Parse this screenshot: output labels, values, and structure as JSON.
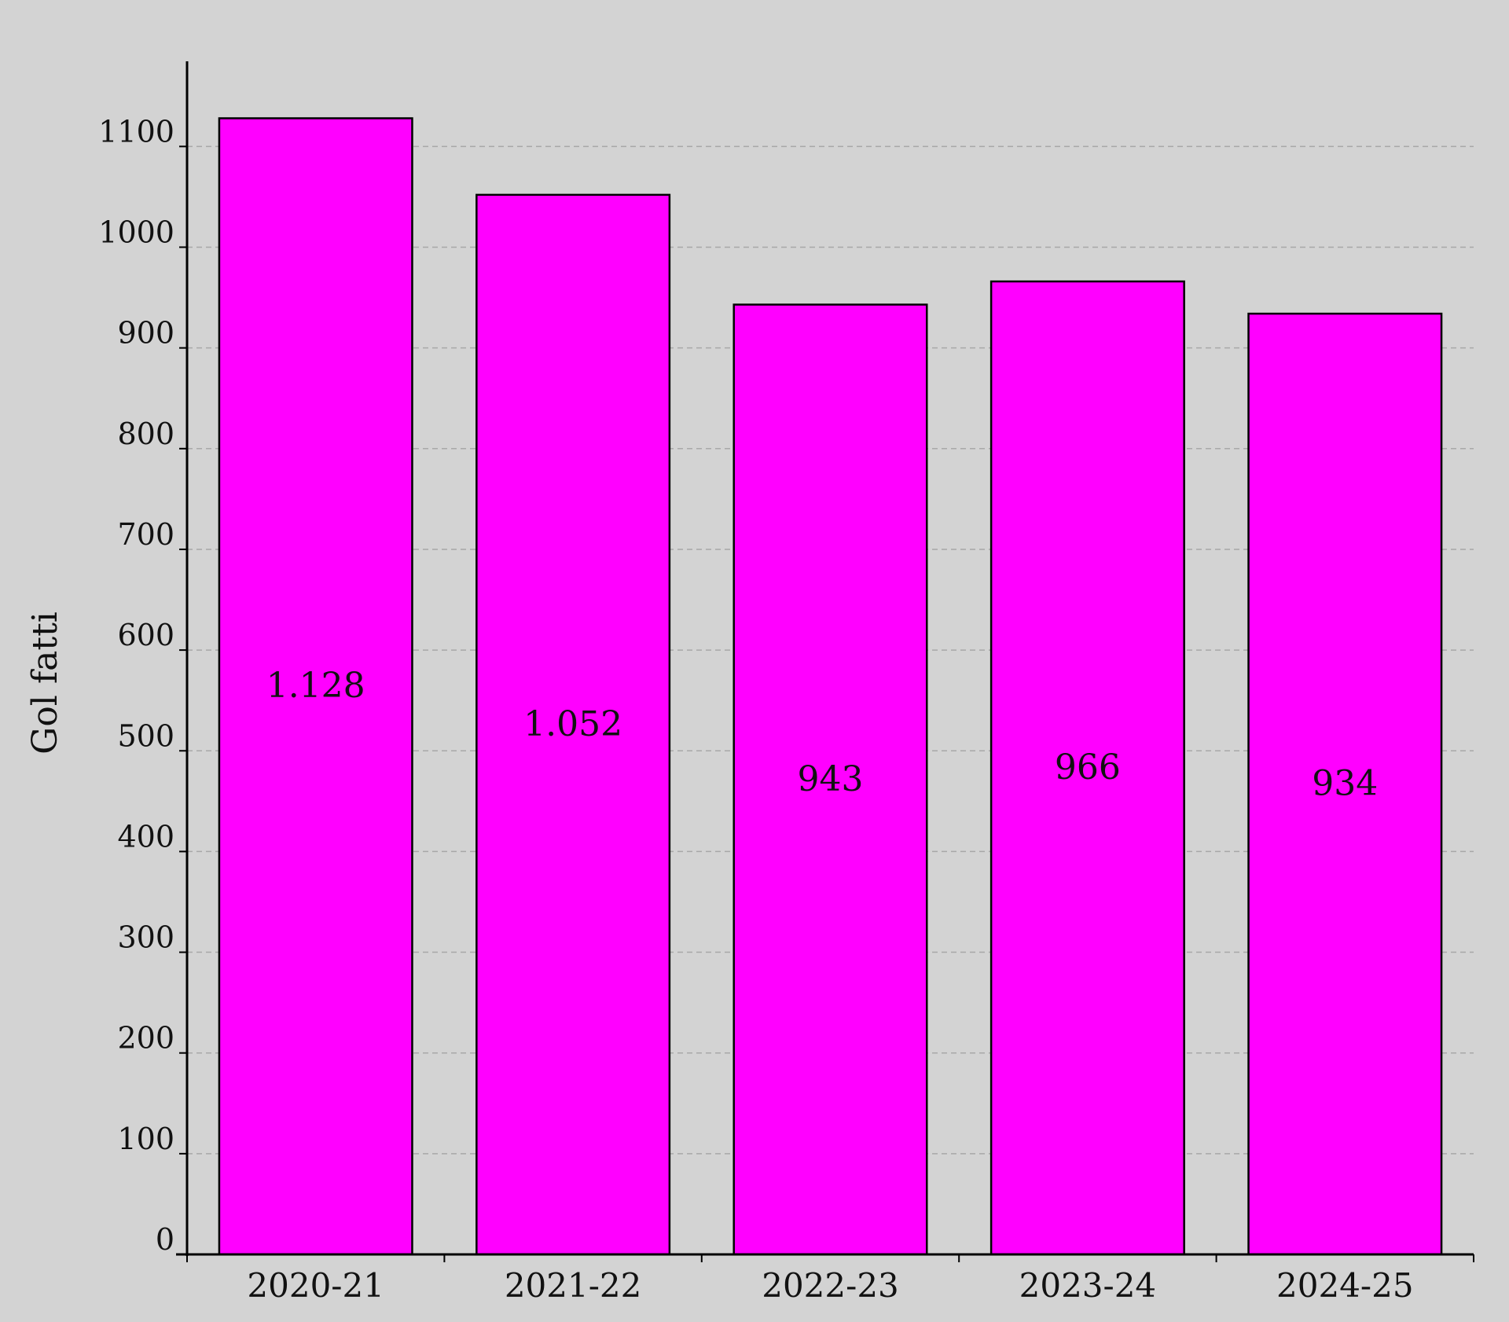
{
  "chart_data": {
    "type": "bar",
    "categories": [
      "2020-21",
      "2021-22",
      "2022-23",
      "2023-24",
      "2024-25"
    ],
    "values": [
      1128,
      1052,
      943,
      966,
      934
    ],
    "data_labels": [
      "1.128",
      "1.052",
      "943",
      "966",
      "934"
    ],
    "title": "",
    "xlabel": "",
    "ylabel": "Gol fatti",
    "ylim": [
      0,
      1150
    ],
    "yticks": [
      0,
      100,
      200,
      300,
      400,
      500,
      600,
      700,
      800,
      900,
      1000,
      1100
    ],
    "grid": "horizontal dashed",
    "legend": "none"
  },
  "colors": {
    "background": "#d3d3d3",
    "bar_fill": "#ff00ff",
    "bar_edge": "#000000",
    "grid": "#a8a8a8"
  }
}
